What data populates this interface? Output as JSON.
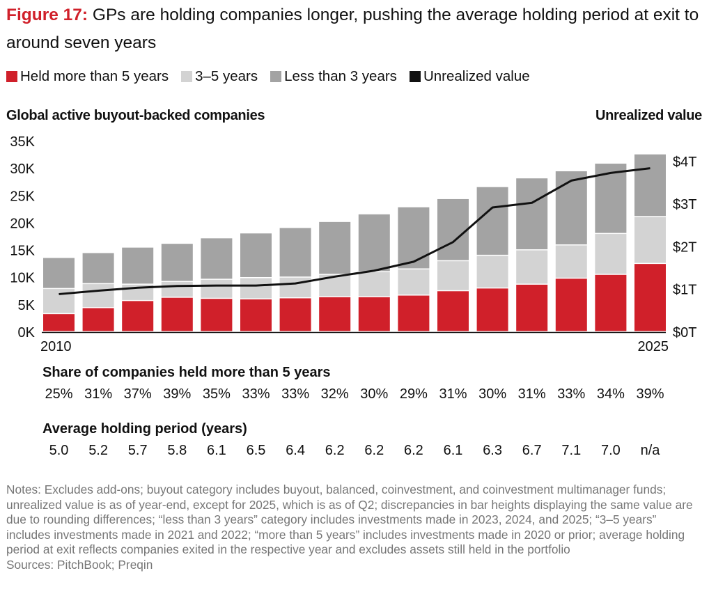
{
  "title": {
    "figure_label": "Figure 17:",
    "text": " GPs are holding companies longer, pushing the average holding period at exit to around seven years"
  },
  "legend": [
    {
      "label": "Held more than 5 years",
      "color": "#d0202a"
    },
    {
      "label": "3–5 years",
      "color": "#d3d3d3"
    },
    {
      "label": "Less than 3 years",
      "color": "#a3a3a3"
    },
    {
      "label": "Unrealized value",
      "color": "#111111"
    }
  ],
  "chart_data": {
    "type": "bar",
    "subtype": "stacked bar with line on secondary axis",
    "left_axis_title": "Global active buyout-backed companies",
    "right_axis_title": "Unrealized value",
    "x": [
      2010,
      2011,
      2012,
      2013,
      2014,
      2015,
      2016,
      2017,
      2018,
      2019,
      2020,
      2021,
      2022,
      2023,
      2024,
      2025
    ],
    "x_tick_labels": [
      "2010",
      "2025"
    ],
    "ylim": [
      0,
      35000
    ],
    "y_ticks": [
      "0K",
      "5K",
      "10K",
      "15K",
      "20K",
      "25K",
      "30K",
      "35K"
    ],
    "y2lim": [
      0,
      4.5
    ],
    "y2_ticks": [
      "$0T",
      "$1T",
      "$2T",
      "$3T",
      "$4T"
    ],
    "series": [
      {
        "name": "Held more than 5 years",
        "type": "bar",
        "values": [
          3300,
          4400,
          5700,
          6300,
          6100,
          6000,
          6200,
          6400,
          6400,
          6700,
          7500,
          8000,
          8700,
          9800,
          10500,
          12500
        ]
      },
      {
        "name": "3–5 years",
        "type": "bar",
        "values": [
          4600,
          4400,
          3000,
          2900,
          3500,
          3900,
          3800,
          4100,
          4600,
          4800,
          5500,
          6000,
          6300,
          6100,
          7500,
          8600
        ]
      },
      {
        "name": "Less than 3 years",
        "type": "bar",
        "values": [
          5700,
          5700,
          6800,
          7000,
          7600,
          8200,
          9100,
          9700,
          10600,
          11400,
          11400,
          12600,
          13200,
          13600,
          12900,
          11500
        ]
      },
      {
        "name": "Unrealized value",
        "type": "line",
        "axis": "right",
        "unit": "$T",
        "values": [
          0.89,
          0.97,
          1.04,
          1.08,
          1.09,
          1.09,
          1.14,
          1.3,
          1.44,
          1.65,
          2.11,
          2.92,
          3.03,
          3.55,
          3.73,
          3.84
        ]
      }
    ]
  },
  "share_row": {
    "title": "Share of companies held more than 5 years",
    "values": [
      "25%",
      "31%",
      "37%",
      "39%",
      "35%",
      "33%",
      "33%",
      "32%",
      "30%",
      "29%",
      "31%",
      "30%",
      "31%",
      "33%",
      "34%",
      "39%"
    ]
  },
  "holding_row": {
    "title": "Average holding period (years)",
    "values": [
      "5.0",
      "5.2",
      "5.7",
      "5.8",
      "6.1",
      "6.5",
      "6.4",
      "6.2",
      "6.2",
      "6.2",
      "6.1",
      "6.3",
      "6.7",
      "7.1",
      "7.0",
      "n/a"
    ]
  },
  "notes": "Notes: Excludes add-ons; buyout category includes buyout, balanced, coinvestment, and coinvestment multimanager funds; unrealized value is as of year-end, except for 2025, which is as of Q2; discrepancies in bar heights displaying the same value are due to rounding differences; “less than 3 years” category includes investments made in 2023, 2024, and 2025; “3–5 years” includes investments made in 2021 and 2022; “more than 5 years” includes investments made in 2020 or prior; average holding period at exit reflects companies exited in the respective year and excludes assets still held in the portfolio",
  "sources": "Sources: PitchBook; Preqin"
}
